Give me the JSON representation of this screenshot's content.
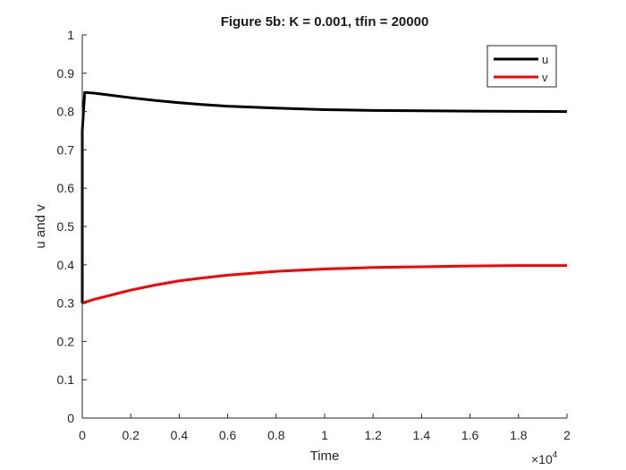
{
  "chart_data": {
    "type": "line",
    "title": "Figure 5b: K = 0.001, tfin = 20000",
    "xlabel": "Time",
    "ylabel": "u and v",
    "xlim": [
      0,
      20000
    ],
    "ylim": [
      0,
      1
    ],
    "x_scale_base": "×10",
    "x_scale_exponent": "4",
    "xticks": [
      0,
      2000,
      4000,
      6000,
      8000,
      10000,
      12000,
      14000,
      16000,
      18000,
      20000
    ],
    "xtick_labels": [
      "0",
      "0.2",
      "0.4",
      "0.6",
      "0.8",
      "1",
      "1.2",
      "1.4",
      "1.6",
      "1.8",
      "2"
    ],
    "yticks": [
      0,
      0.1,
      0.2,
      0.3,
      0.4,
      0.5,
      0.6,
      0.7,
      0.8,
      0.9,
      1
    ],
    "ytick_labels": [
      "0",
      "0.1",
      "0.2",
      "0.3",
      "0.4",
      "0.5",
      "0.6",
      "0.7",
      "0.8",
      "0.9",
      "1"
    ],
    "grid": false,
    "legend_position": "top-right",
    "series": [
      {
        "name": "u",
        "color": "#000000",
        "x": [
          0,
          0,
          100,
          500,
          1000,
          2000,
          3000,
          4000,
          5000,
          6000,
          8000,
          10000,
          12000,
          14000,
          16000,
          18000,
          20000
        ],
        "y": [
          0.3,
          0.75,
          0.85,
          0.848,
          0.844,
          0.836,
          0.829,
          0.823,
          0.818,
          0.814,
          0.809,
          0.805,
          0.803,
          0.802,
          0.801,
          0.8005,
          0.8
        ]
      },
      {
        "name": "v",
        "color": "#ff0000",
        "x": [
          0,
          500,
          1000,
          2000,
          3000,
          4000,
          5000,
          6000,
          8000,
          10000,
          12000,
          14000,
          16000,
          18000,
          20000
        ],
        "y": [
          0.3,
          0.31,
          0.318,
          0.334,
          0.347,
          0.358,
          0.366,
          0.373,
          0.383,
          0.389,
          0.393,
          0.395,
          0.397,
          0.398,
          0.398
        ]
      }
    ]
  }
}
